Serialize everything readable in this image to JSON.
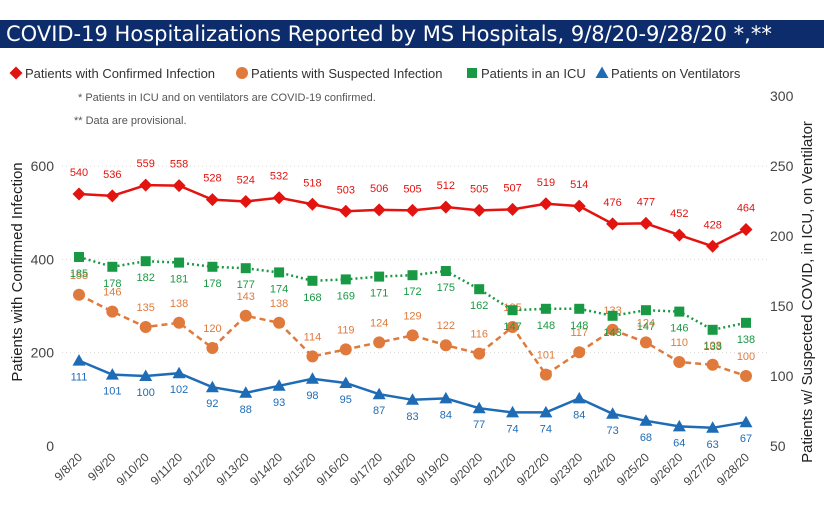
{
  "title": "COVID-19 Hospitalizations Reported by MS Hospitals, 9/8/20-9/28/20 *,**",
  "notes": [
    "* Patients in ICU and on ventilators are COVID-19 confirmed.",
    "** Data are provisional."
  ],
  "colors": {
    "title_bg": "#0d2c6c",
    "confirmed": "#e3130f",
    "suspected": "#e07a3c",
    "icu": "#1a9944",
    "ventilator": "#1f6cb6"
  },
  "chart_data": {
    "type": "line",
    "categories": [
      "9/8/20",
      "9/9/20",
      "9/10/20",
      "9/11/20",
      "9/12/20",
      "9/13/20",
      "9/14/20",
      "9/15/20",
      "9/16/20",
      "9/17/20",
      "9/18/20",
      "9/19/20",
      "9/20/20",
      "9/21/20",
      "9/22/20",
      "9/23/20",
      "9/24/20",
      "9/25/20",
      "9/26/20",
      "9/27/20",
      "9/28/20"
    ],
    "ylabel_left": "Patients with Confirmed Infection",
    "ylabel_right": "Patients w/ Suspected COVID, in ICU, on Ventilator",
    "ylim_left": [
      0,
      600
    ],
    "yticks_left": [
      0,
      200,
      400,
      600
    ],
    "ylim_right": [
      50,
      300
    ],
    "yticks_right": [
      50,
      100,
      150,
      200,
      250,
      300
    ],
    "legend_position": "top",
    "series": [
      {
        "name": "Patients with Confirmed Infection",
        "axis": "left",
        "marker": "diamond",
        "line": "solid",
        "color": "#e3130f",
        "values": [
          540,
          536,
          559,
          558,
          528,
          524,
          532,
          518,
          503,
          506,
          505,
          512,
          505,
          507,
          519,
          514,
          476,
          477,
          452,
          428,
          464
        ]
      },
      {
        "name": "Patients with Suspected Infection",
        "axis": "right",
        "marker": "circle",
        "line": "dashed",
        "color": "#e07a3c",
        "values": [
          158,
          146,
          135,
          138,
          120,
          143,
          138,
          114,
          119,
          124,
          129,
          122,
          116,
          135,
          101,
          117,
          133,
          124,
          110,
          108,
          100
        ]
      },
      {
        "name": "Patients in an ICU",
        "axis": "right",
        "marker": "square",
        "line": "dotted",
        "color": "#1a9944",
        "values": [
          185,
          178,
          182,
          181,
          178,
          177,
          174,
          168,
          169,
          171,
          172,
          175,
          162,
          147,
          148,
          148,
          143,
          147,
          146,
          133,
          138
        ]
      },
      {
        "name": "Patients on Ventilators",
        "axis": "right",
        "marker": "triangle",
        "line": "solid",
        "color": "#1f6cb6",
        "values": [
          111,
          101,
          100,
          102,
          92,
          88,
          93,
          98,
          95,
          87,
          83,
          84,
          77,
          74,
          74,
          84,
          73,
          68,
          64,
          63,
          67
        ]
      }
    ]
  }
}
